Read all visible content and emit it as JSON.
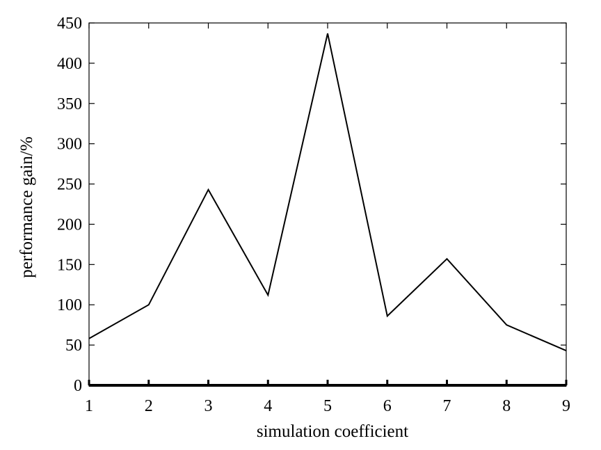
{
  "chart_data": {
    "type": "line",
    "title": "",
    "xlabel": "simulation coefficient",
    "ylabel": "performance gain/%",
    "xlim": [
      1,
      9
    ],
    "ylim": [
      0,
      450
    ],
    "xticks": [
      1,
      2,
      3,
      4,
      5,
      6,
      7,
      8,
      9
    ],
    "yticks": [
      0,
      50,
      100,
      150,
      200,
      250,
      300,
      350,
      400,
      450
    ],
    "grid": false,
    "line_color": "#000000",
    "series": [
      {
        "x": [
          1,
          2,
          3,
          4,
          5,
          6,
          7,
          8,
          9
        ],
        "values": [
          58,
          100,
          243,
          112,
          437,
          86,
          157,
          75,
          43
        ]
      }
    ]
  }
}
